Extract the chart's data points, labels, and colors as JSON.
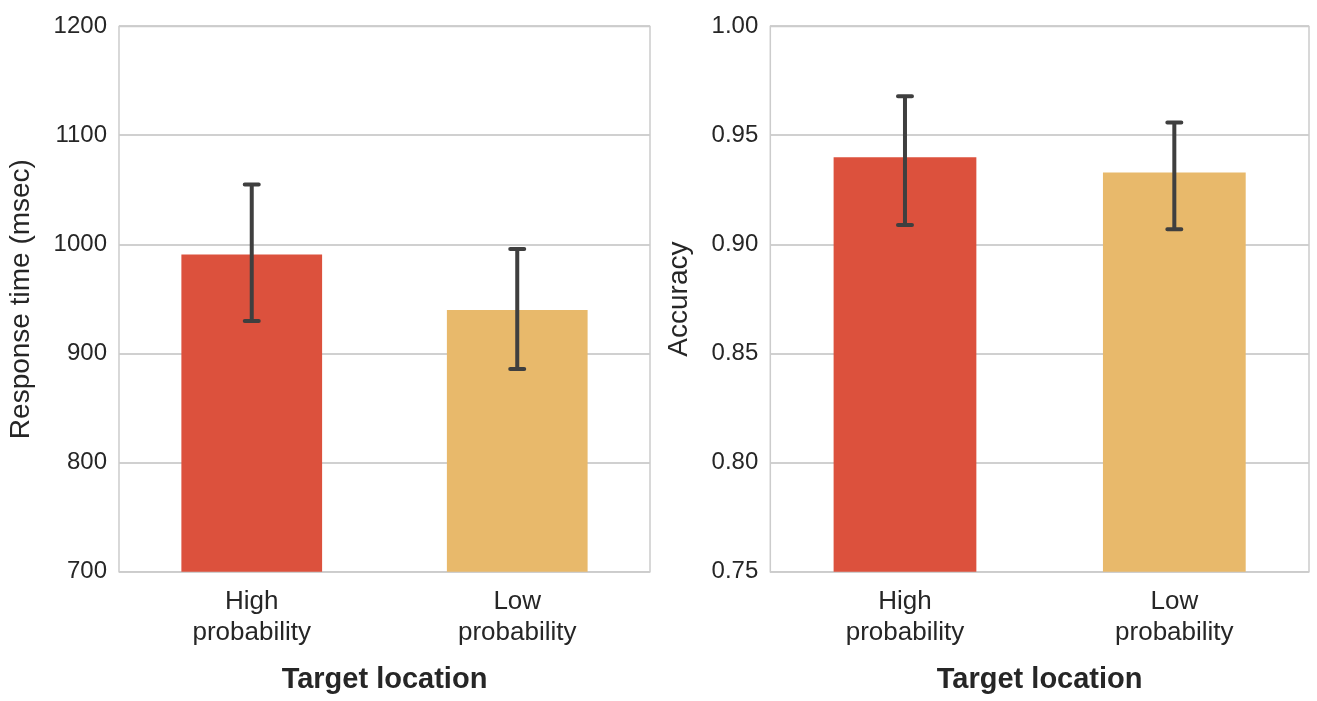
{
  "chart_data": [
    {
      "type": "bar",
      "categories": [
        "High probability",
        "Low probability"
      ],
      "values": [
        991,
        940
      ],
      "colors": [
        "#dc513d",
        "#e8b96b"
      ],
      "errors": [
        [
          930,
          1055
        ],
        [
          886,
          996
        ]
      ],
      "xlabel": "Target location",
      "ylabel": "Response time (msec)",
      "ylim": [
        700,
        1200
      ],
      "yticks": [
        700,
        800,
        900,
        1000,
        1100,
        1200
      ],
      "grid": "y"
    },
    {
      "type": "bar",
      "categories": [
        "High probability",
        "Low probability"
      ],
      "values": [
        0.94,
        0.933
      ],
      "colors": [
        "#dc513d",
        "#e8b96b"
      ],
      "errors": [
        [
          0.909,
          0.968
        ],
        [
          0.907,
          0.956
        ]
      ],
      "xlabel": "Target location",
      "ylabel": "Accuracy",
      "ylim": [
        0.75,
        1.0
      ],
      "yticks": [
        0.75,
        {
          "value": 0.8,
          "label": "0.80"
        },
        0.85,
        {
          "value": 0.9,
          "label": "0.90"
        },
        0.95,
        {
          "value": 1.0,
          "label": "1.00"
        }
      ],
      "grid": "y"
    }
  ]
}
